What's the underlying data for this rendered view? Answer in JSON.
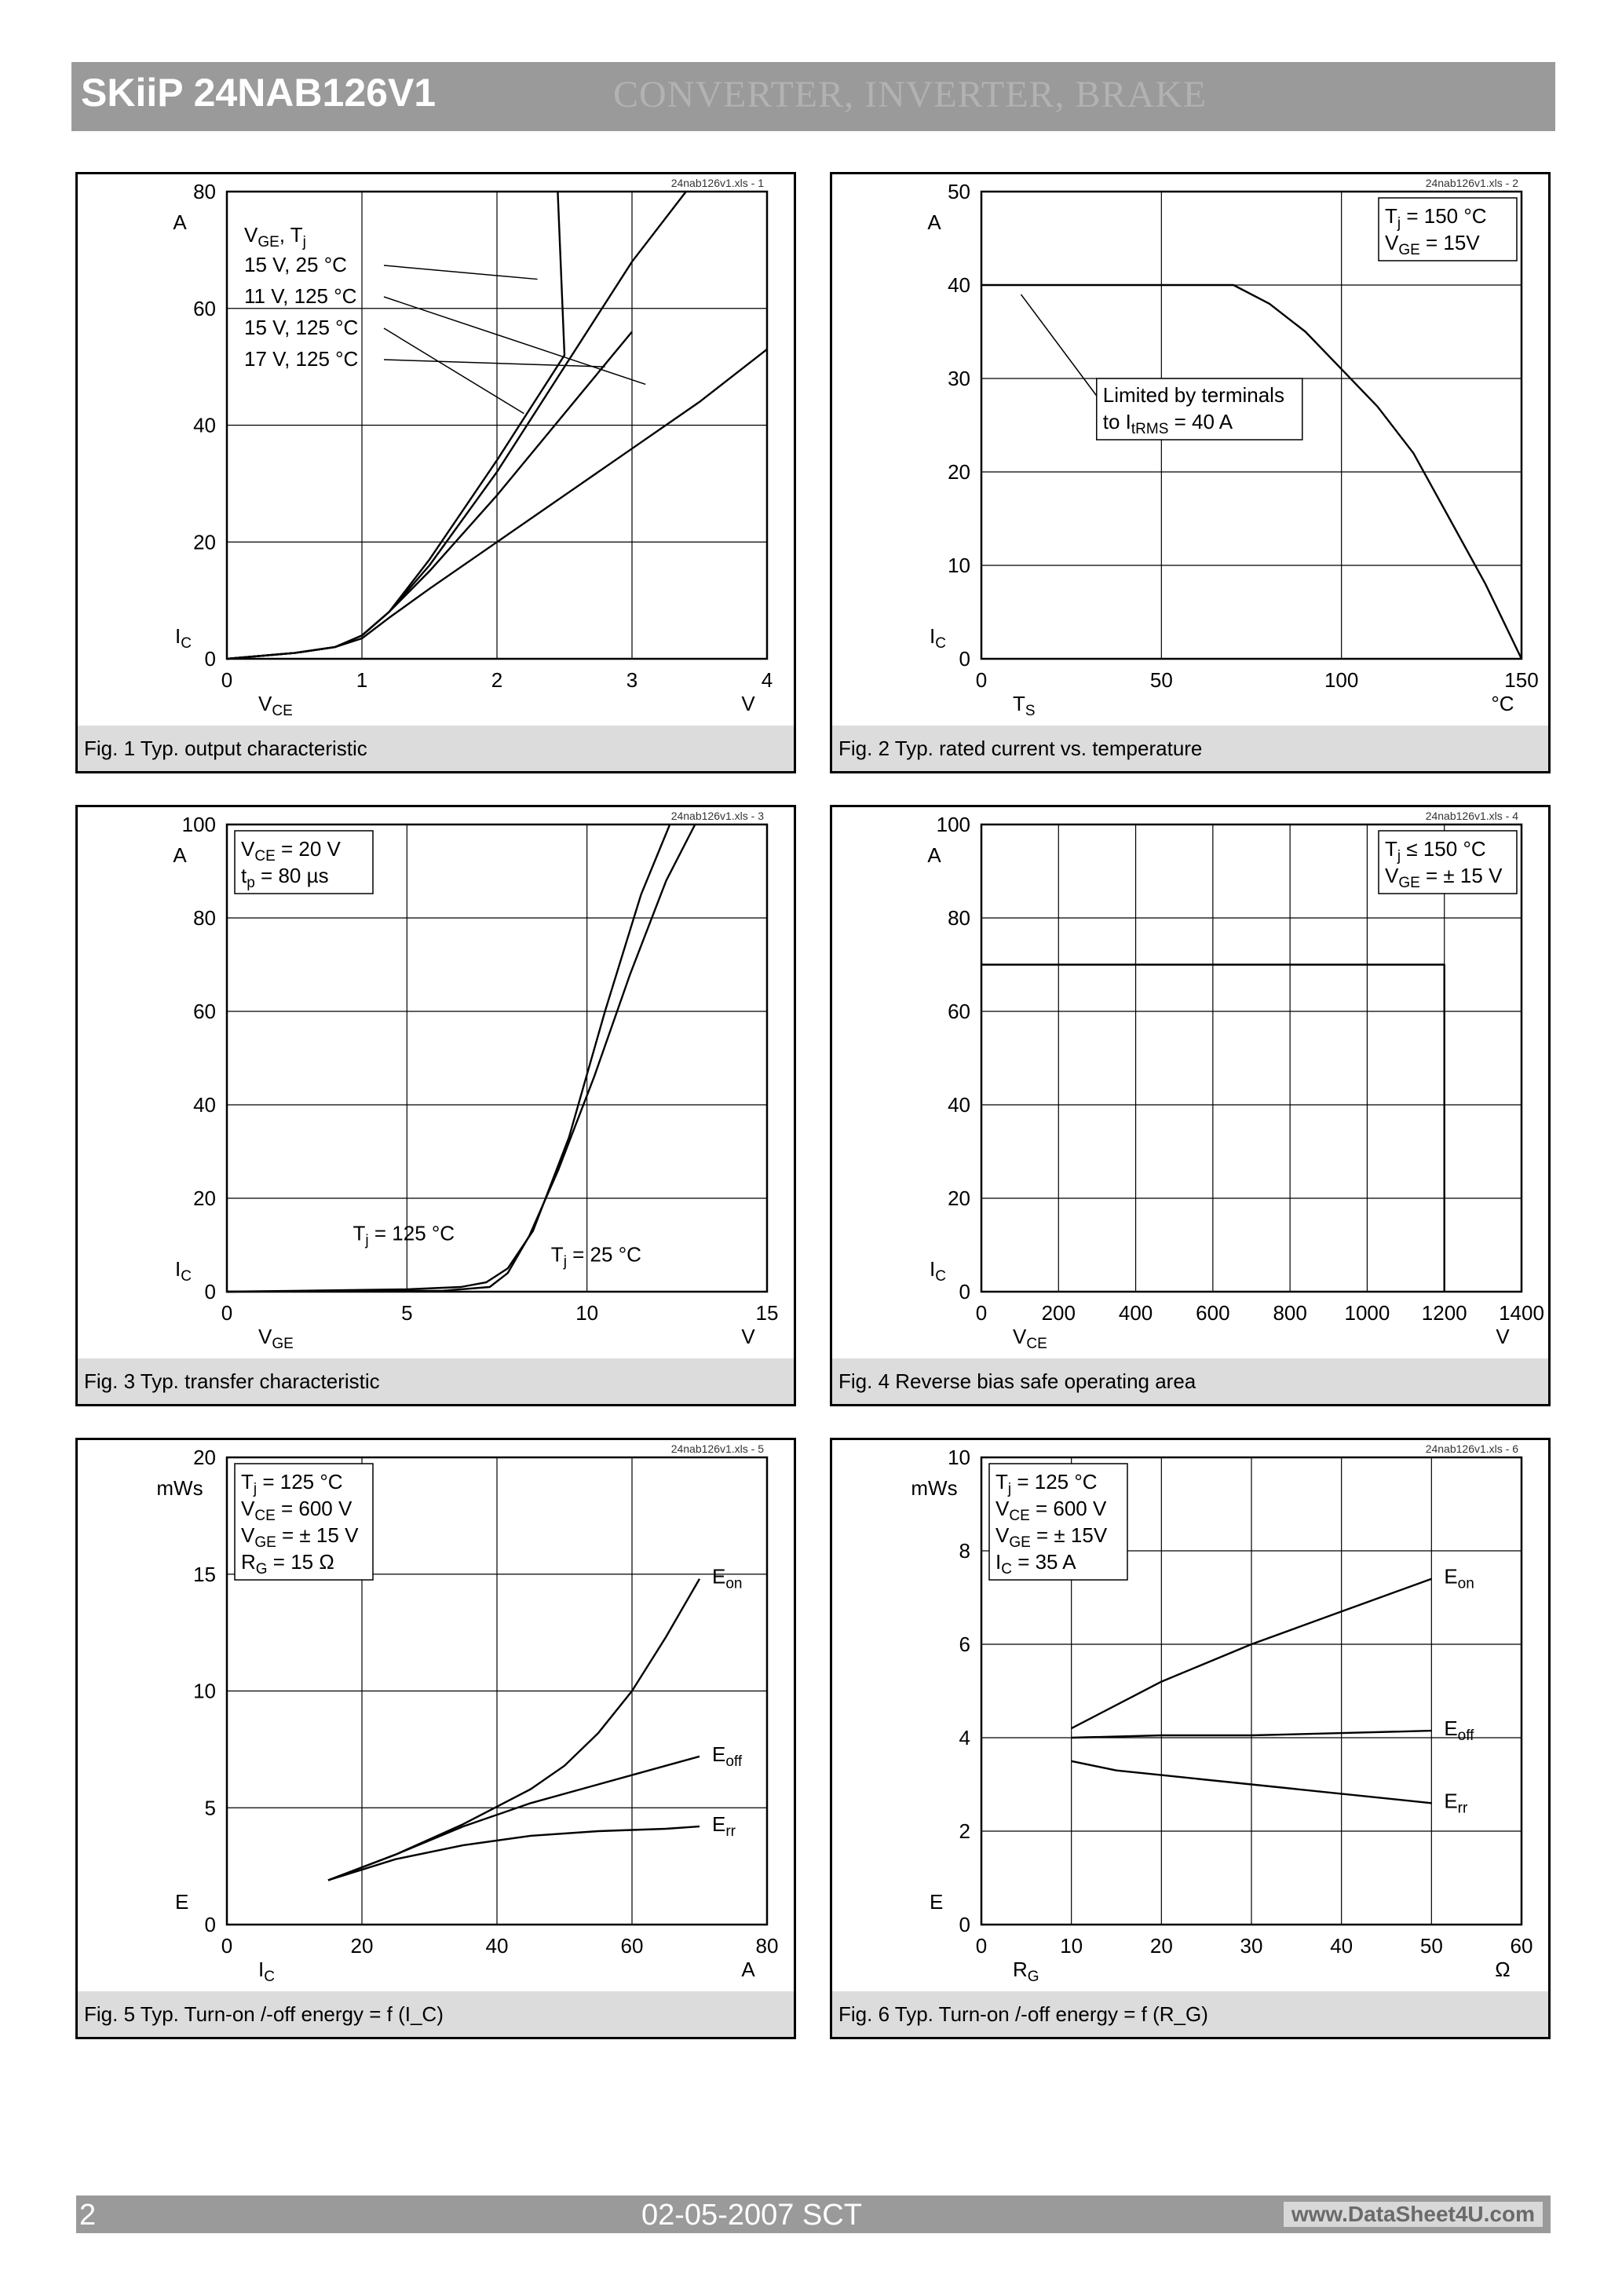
{
  "header": {
    "title": "SKiiP 24NAB126V1",
    "subtitle_ghost": "CONVERTER, INVERTER, BRAKE"
  },
  "footer": {
    "page": "2",
    "date": "02-05-2007  SCT",
    "site": "www.DataSheet4U.com"
  },
  "charts": [
    {
      "file_tag": "24nab126v1.xls - 1",
      "caption": "Fig. 1 Typ. output characteristic",
      "chart_data": {
        "type": "line",
        "xlim": [
          0,
          4
        ],
        "ylim": [
          0,
          80
        ],
        "xticks": [
          0,
          1,
          2,
          3,
          4
        ],
        "yticks": [
          0,
          20,
          40,
          60,
          80
        ],
        "xunit": "V",
        "yunit": "A",
        "xlabel": "V_CE",
        "ylabel": "I_C",
        "grid": true,
        "legend_header": "V_GE,   T_j",
        "legend": [
          "15 V,   25 °C",
          "11 V, 125 °C",
          "15 V, 125 °C",
          "17 V, 125 °C"
        ],
        "series": [
          {
            "name": "15 V, 25 °C",
            "x": [
              0,
              0.5,
              0.8,
              1.0,
              1.2,
              1.5,
              2.0,
              2.5,
              2.45
            ],
            "y": [
              0,
              1,
              2,
              4,
              8,
              17,
              34,
              52,
              80
            ]
          },
          {
            "name": "11 V, 125 °C",
            "x": [
              0,
              0.5,
              0.8,
              1.0,
              1.2,
              1.5,
              2.0,
              2.5,
              3.0,
              3.5,
              4.0
            ],
            "y": [
              0,
              1,
              2,
              3.5,
              7,
              12,
              20,
              28,
              36,
              44,
              53
            ]
          },
          {
            "name": "15 V, 125 °C",
            "x": [
              0,
              0.5,
              0.8,
              1.0,
              1.2,
              1.5,
              2.0,
              2.5,
              3.0
            ],
            "y": [
              0,
              1,
              2,
              4,
              8,
              15,
              28,
              42,
              56
            ]
          },
          {
            "name": "17 V, 125 °C",
            "x": [
              0,
              0.5,
              0.8,
              1.0,
              1.2,
              1.5,
              2.0,
              2.5,
              3.0,
              3.4
            ],
            "y": [
              0,
              1,
              2,
              4,
              8,
              16,
              32,
              50,
              68,
              80
            ]
          }
        ]
      }
    },
    {
      "file_tag": "24nab126v1.xls - 2",
      "caption": "Fig. 2 Typ. rated current vs. temperature",
      "chart_data": {
        "type": "line",
        "xlim": [
          0,
          150
        ],
        "ylim": [
          0,
          50
        ],
        "xticks": [
          0,
          50,
          100,
          150
        ],
        "yticks": [
          0,
          10,
          20,
          30,
          40,
          50
        ],
        "xunit": "°C",
        "yunit": "A",
        "xlabel": "T_S",
        "ylabel": "I_C",
        "grid": true,
        "legend": [
          "T_j    = 150 °C",
          "V_GE = 15V"
        ],
        "annotation": [
          "Limited by terminals",
          "to I_tRMS = 40 A"
        ],
        "series": [
          {
            "name": "I_C",
            "x": [
              0,
              70,
              80,
              90,
              100,
              110,
              120,
              130,
              140,
              150
            ],
            "y": [
              40,
              40,
              38,
              35,
              31,
              27,
              22,
              15,
              8,
              0
            ]
          }
        ]
      }
    },
    {
      "file_tag": "24nab126v1.xls - 3",
      "caption": "Fig. 3 Typ. transfer characteristic",
      "chart_data": {
        "type": "line",
        "xlim": [
          0,
          15
        ],
        "ylim": [
          0,
          100
        ],
        "xticks": [
          0,
          5,
          10,
          15
        ],
        "yticks": [
          0,
          20,
          40,
          60,
          80,
          100
        ],
        "xunit": "V",
        "yunit": "A",
        "xlabel": "V_GE",
        "ylabel": "I_C",
        "grid": true,
        "legend": [
          "V_CE = 20 V",
          "t_p    = 80 µs"
        ],
        "series": [
          {
            "name": "T_j = 125 °C",
            "x": [
              0,
              5,
              6.5,
              7.2,
              7.8,
              8.5,
              9.5,
              10.5,
              11.5,
              12.3
            ],
            "y": [
              0,
              0.5,
              1,
              2,
              5,
              13,
              33,
              60,
              85,
              100
            ]
          },
          {
            "name": "T_j = 25 °C",
            "x": [
              0,
              6,
              7.3,
              7.8,
              8.4,
              9.2,
              10.2,
              11.2,
              12.2,
              13.0
            ],
            "y": [
              0,
              0.2,
              1,
              4,
              12,
              26,
              46,
              68,
              88,
              100
            ]
          }
        ]
      }
    },
    {
      "file_tag": "24nab126v1.xls - 4",
      "caption": "Fig. 4 Reverse bias safe operating area",
      "chart_data": {
        "type": "line",
        "xlim": [
          0,
          1400
        ],
        "ylim": [
          0,
          100
        ],
        "xticks": [
          0,
          200,
          400,
          600,
          800,
          1000,
          1200,
          1400
        ],
        "yticks": [
          0,
          20,
          40,
          60,
          80,
          100
        ],
        "xunit": "V",
        "yunit": "A",
        "xlabel": "V_CE",
        "ylabel": "I_C",
        "grid": true,
        "legend": [
          "T_j    ≤ 150 °C",
          "V_GE = ± 15 V"
        ],
        "series": [
          {
            "name": "RBSOA",
            "x": [
              0,
              1200,
              1200
            ],
            "y": [
              70,
              70,
              0
            ]
          }
        ]
      }
    },
    {
      "file_tag": "24nab126v1.xls - 5",
      "caption": "Fig. 5 Typ. Turn-on /-off energy = f (I_C)",
      "chart_data": {
        "type": "line",
        "xlim": [
          0,
          80
        ],
        "ylim": [
          0,
          20
        ],
        "xticks": [
          0,
          20,
          40,
          60,
          80
        ],
        "yticks": [
          0,
          5,
          10,
          15,
          20
        ],
        "xunit": "A",
        "yunit": "mWs",
        "xlabel": "I_C",
        "ylabel": "E",
        "grid": true,
        "legend": [
          "T_j    = 125 °C",
          "V_CE = 600 V",
          "V_GE = ± 15 V",
          "R_G    = 15 Ω"
        ],
        "series": [
          {
            "name": "E_on",
            "x": [
              15,
              25,
              35,
              45,
              50,
              55,
              60,
              65,
              70
            ],
            "y": [
              1.9,
              3.0,
              4.3,
              5.8,
              6.8,
              8.2,
              10.0,
              12.3,
              14.8
            ]
          },
          {
            "name": "E_off",
            "x": [
              15,
              25,
              35,
              45,
              55,
              65,
              70
            ],
            "y": [
              1.9,
              3.0,
              4.2,
              5.2,
              6.0,
              6.8,
              7.2
            ]
          },
          {
            "name": "E_rr",
            "x": [
              15,
              25,
              35,
              45,
              55,
              65,
              70
            ],
            "y": [
              1.9,
              2.8,
              3.4,
              3.8,
              4.0,
              4.1,
              4.2
            ]
          }
        ]
      }
    },
    {
      "file_tag": "24nab126v1.xls - 6",
      "caption": "Fig. 6 Typ. Turn-on /-off energy = f (R_G)",
      "chart_data": {
        "type": "line",
        "xlim": [
          0,
          60
        ],
        "ylim": [
          0,
          10
        ],
        "xticks": [
          0,
          10,
          20,
          30,
          40,
          50,
          60
        ],
        "yticks": [
          0,
          2,
          4,
          6,
          8,
          10
        ],
        "xunit": "Ω",
        "yunit": "mWs",
        "xlabel": "R_G",
        "ylabel": "E",
        "grid": true,
        "legend": [
          "T_j    = 125 °C",
          "V_CE = 600 V",
          "V_GE = ± 15V",
          "I_C     = 35 A"
        ],
        "series": [
          {
            "name": "E_on",
            "x": [
              10,
              20,
              30,
              40,
              50
            ],
            "y": [
              4.2,
              5.2,
              6.0,
              6.7,
              7.4
            ]
          },
          {
            "name": "E_off",
            "x": [
              10,
              20,
              30,
              40,
              50
            ],
            "y": [
              4.0,
              4.05,
              4.05,
              4.1,
              4.15
            ]
          },
          {
            "name": "E_rr",
            "x": [
              10,
              15,
              20,
              30,
              40,
              50
            ],
            "y": [
              3.5,
              3.3,
              3.2,
              3.0,
              2.8,
              2.6
            ]
          }
        ]
      }
    }
  ]
}
